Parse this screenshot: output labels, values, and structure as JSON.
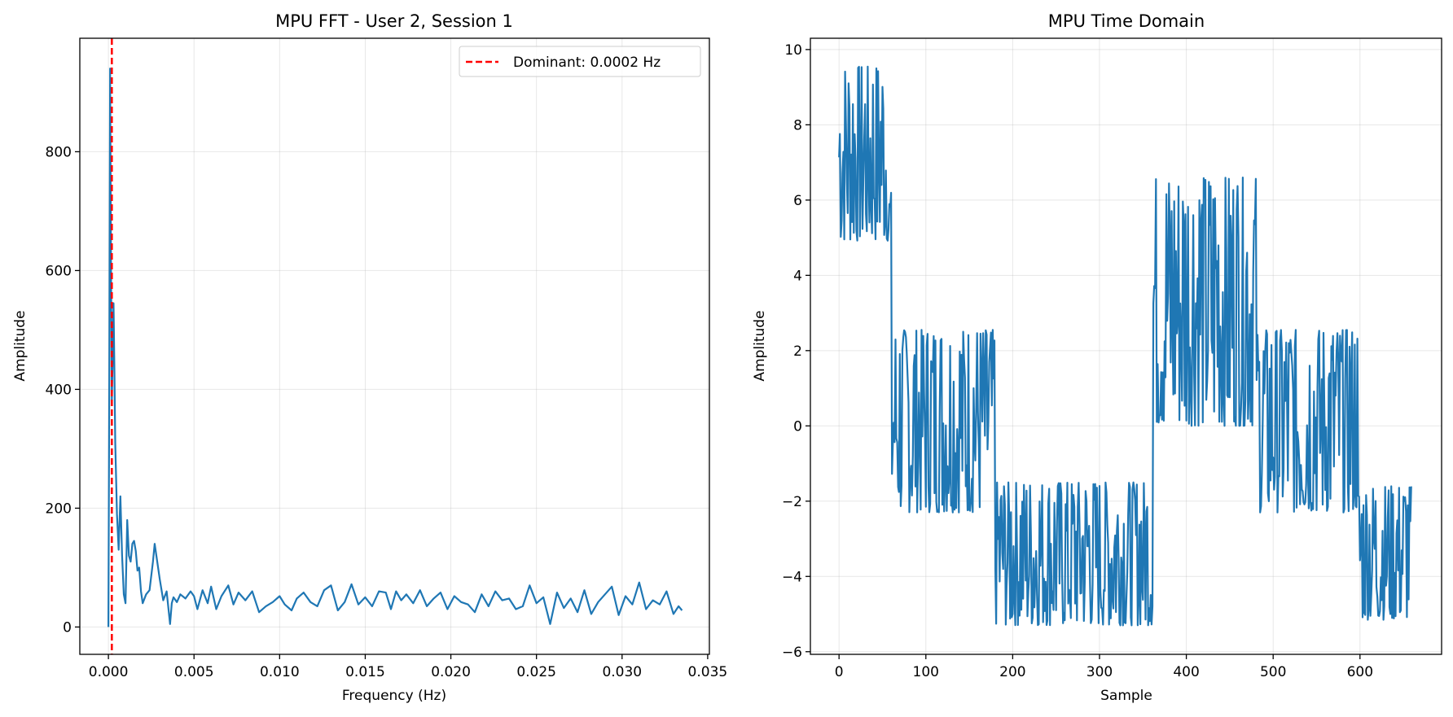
{
  "colors": {
    "series": "#1f77b4",
    "marker": "#ff0000",
    "grid": "#b0b0b0",
    "axis": "#000000"
  },
  "chart_data": [
    {
      "type": "line",
      "title": "MPU FFT - User 2, Session 1",
      "xlabel": "Frequency (Hz)",
      "ylabel": "Amplitude",
      "xlim": [
        -0.00167,
        0.0351
      ],
      "ylim": [
        -46,
        991
      ],
      "xticks": [
        0.0,
        0.005,
        0.01,
        0.015,
        0.02,
        0.025,
        0.03,
        0.035
      ],
      "xtick_labels": [
        "0.000",
        "0.005",
        "0.010",
        "0.015",
        "0.020",
        "0.025",
        "0.030",
        "0.035"
      ],
      "yticks": [
        0,
        200,
        400,
        600,
        800
      ],
      "ytick_labels": [
        "0",
        "200",
        "400",
        "600",
        "800"
      ],
      "grid": true,
      "legend": {
        "location": "upper right",
        "entries": [
          {
            "label": "Dominant: 0.0002 Hz",
            "style": "dashed",
            "color": "#ff0000"
          }
        ]
      },
      "vline": {
        "x": 0.0002,
        "color": "#ff0000",
        "style": "dashed"
      },
      "series": [
        {
          "color": "#1f77b4",
          "x": [
            0.0,
            5e-05,
            0.0001,
            0.00015,
            0.0002,
            0.00025,
            0.0003,
            0.00035,
            0.0004,
            0.0005,
            0.0006,
            0.0007,
            0.0008,
            0.0009,
            0.001,
            0.0011,
            0.0012,
            0.0013,
            0.0014,
            0.0015,
            0.0016,
            0.0017,
            0.0018,
            0.0019,
            0.002,
            0.0022,
            0.0024,
            0.0026,
            0.0027,
            0.0028,
            0.003,
            0.0032,
            0.0034,
            0.0036,
            0.0037,
            0.0038,
            0.004,
            0.0042,
            0.0045,
            0.0048,
            0.005,
            0.0052,
            0.0055,
            0.0058,
            0.006,
            0.0063,
            0.0066,
            0.007,
            0.0073,
            0.0076,
            0.008,
            0.0084,
            0.0088,
            0.0092,
            0.0096,
            0.01,
            0.0103,
            0.0107,
            0.011,
            0.0114,
            0.0118,
            0.0122,
            0.0126,
            0.013,
            0.0134,
            0.0138,
            0.0142,
            0.0146,
            0.015,
            0.0154,
            0.0158,
            0.0162,
            0.0165,
            0.0168,
            0.0171,
            0.0174,
            0.0178,
            0.0182,
            0.0186,
            0.019,
            0.0194,
            0.0198,
            0.0202,
            0.0206,
            0.021,
            0.0214,
            0.0218,
            0.0222,
            0.0226,
            0.023,
            0.0234,
            0.0238,
            0.0242,
            0.0246,
            0.025,
            0.0254,
            0.0258,
            0.0262,
            0.0266,
            0.027,
            0.0274,
            0.0278,
            0.0282,
            0.0286,
            0.029,
            0.0294,
            0.0298,
            0.0302,
            0.0306,
            0.031,
            0.0314,
            0.0318,
            0.0322,
            0.0326,
            0.033,
            0.0333,
            0.0335
          ],
          "y": [
            0,
            420,
            940,
            610,
            380,
            460,
            545,
            430,
            310,
            190,
            130,
            220,
            120,
            55,
            40,
            180,
            120,
            110,
            140,
            145,
            128,
            95,
            100,
            60,
            40,
            55,
            62,
            110,
            140,
            120,
            80,
            45,
            60,
            5,
            40,
            50,
            42,
            55,
            48,
            60,
            52,
            30,
            62,
            40,
            68,
            30,
            52,
            70,
            38,
            58,
            45,
            60,
            25,
            35,
            42,
            52,
            38,
            28,
            48,
            58,
            42,
            35,
            62,
            70,
            28,
            42,
            72,
            38,
            50,
            35,
            60,
            58,
            30,
            60,
            45,
            55,
            40,
            62,
            35,
            48,
            58,
            30,
            52,
            42,
            38,
            25,
            55,
            35,
            60,
            45,
            48,
            30,
            35,
            70,
            40,
            50,
            5,
            58,
            32,
            48,
            25,
            62,
            22,
            42,
            55,
            68,
            20,
            52,
            38,
            75,
            30,
            45,
            38,
            60,
            22,
            35,
            28
          ]
        }
      ]
    },
    {
      "type": "line",
      "title": "MPU Time Domain",
      "xlabel": "Sample",
      "ylabel": "Amplitude",
      "xlim": [
        -33,
        694
      ],
      "ylim": [
        -6.07,
        10.3
      ],
      "xticks": [
        0,
        100,
        200,
        300,
        400,
        500,
        600
      ],
      "xtick_labels": [
        "0",
        "100",
        "200",
        "300",
        "400",
        "500",
        "600"
      ],
      "yticks": [
        -6,
        -4,
        -2,
        0,
        2,
        4,
        6,
        8,
        10
      ],
      "ytick_labels": [
        "−6",
        "−4",
        "−2",
        "0",
        "2",
        "4",
        "6",
        "8",
        "10"
      ],
      "grid": true,
      "series": [
        {
          "color": "#1f77b4",
          "segments": [
            {
              "start": 0,
              "end": 57,
              "low": 4.9,
              "high": 9.55
            },
            {
              "start": 57,
              "end": 61,
              "low": 4.7,
              "high": 6.2
            },
            {
              "start": 61,
              "end": 180,
              "low": -2.3,
              "high": 2.55
            },
            {
              "start": 180,
              "end": 362,
              "low": -5.3,
              "high": -1.5
            },
            {
              "start": 362,
              "end": 482,
              "low": 0.0,
              "high": 6.6
            },
            {
              "start": 482,
              "end": 598,
              "low": -2.3,
              "high": 2.55
            },
            {
              "start": 598,
              "end": 660,
              "low": -5.15,
              "high": -1.6
            }
          ],
          "points_per_sample": 1
        }
      ]
    }
  ]
}
